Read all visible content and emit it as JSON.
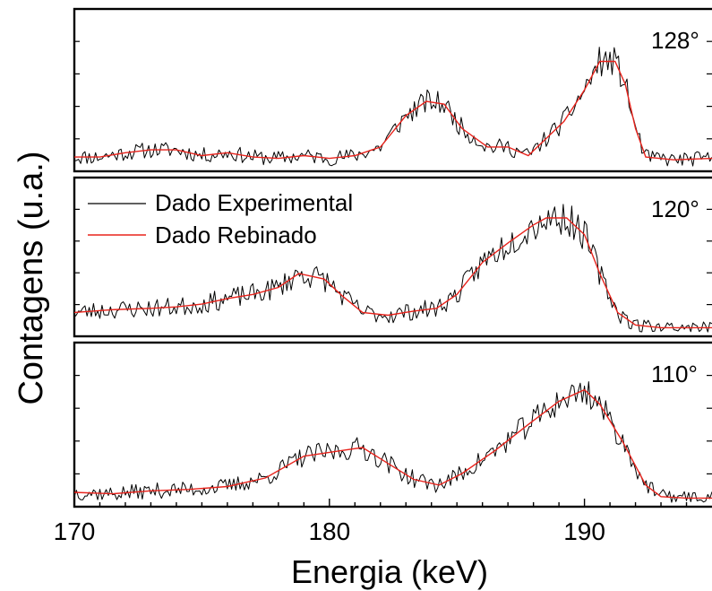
{
  "chart_data": {
    "type": "line",
    "ylabel": "Contagens (u.a.)",
    "xlabel": "Energia (keV)",
    "xlim": [
      170,
      195
    ],
    "xticks": [
      170,
      180,
      190
    ],
    "xtick_labels": [
      "170",
      "180",
      "190"
    ],
    "grid": false,
    "legend": {
      "placement": "top-left of middle panel",
      "entries": [
        {
          "label": "Dado Experimental",
          "color": "#000000"
        },
        {
          "label": "Dado Rebinado",
          "color": "#e8231c"
        }
      ]
    },
    "panels": [
      {
        "angle_label": "128°",
        "noise": 0.09,
        "seed": 11,
        "rebinned": [
          [
            170.0,
            0.05
          ],
          [
            171.0,
            0.05
          ],
          [
            172.0,
            0.08
          ],
          [
            173.0,
            0.1
          ],
          [
            174.0,
            0.1
          ],
          [
            175.0,
            0.06
          ],
          [
            176.0,
            0.08
          ],
          [
            177.0,
            0.05
          ],
          [
            178.0,
            0.04
          ],
          [
            179.0,
            0.06
          ],
          [
            180.0,
            0.04
          ],
          [
            181.0,
            0.06
          ],
          [
            182.0,
            0.12
          ],
          [
            183.0,
            0.34
          ],
          [
            183.8,
            0.44
          ],
          [
            184.5,
            0.42
          ],
          [
            185.2,
            0.25
          ],
          [
            186.2,
            0.12
          ],
          [
            187.0,
            0.12
          ],
          [
            187.8,
            0.06
          ],
          [
            188.5,
            0.18
          ],
          [
            189.2,
            0.3
          ],
          [
            190.0,
            0.52
          ],
          [
            190.6,
            0.72
          ],
          [
            191.2,
            0.72
          ],
          [
            191.6,
            0.56
          ],
          [
            192.0,
            0.25
          ],
          [
            192.4,
            0.05
          ],
          [
            193.5,
            0.03
          ],
          [
            195.0,
            0.04
          ]
        ]
      },
      {
        "angle_label": "120°",
        "noise": 0.1,
        "seed": 23,
        "rebinned": [
          [
            170.0,
            0.12
          ],
          [
            171.5,
            0.14
          ],
          [
            173.0,
            0.15
          ],
          [
            174.0,
            0.16
          ],
          [
            175.0,
            0.18
          ],
          [
            176.0,
            0.22
          ],
          [
            177.0,
            0.25
          ],
          [
            178.0,
            0.3
          ],
          [
            178.8,
            0.4
          ],
          [
            179.8,
            0.36
          ],
          [
            180.5,
            0.24
          ],
          [
            181.3,
            0.12
          ],
          [
            182.3,
            0.1
          ],
          [
            183.3,
            0.13
          ],
          [
            184.2,
            0.15
          ],
          [
            185.0,
            0.25
          ],
          [
            186.0,
            0.48
          ],
          [
            187.0,
            0.62
          ],
          [
            188.0,
            0.75
          ],
          [
            188.5,
            0.8
          ],
          [
            189.3,
            0.8
          ],
          [
            190.0,
            0.68
          ],
          [
            190.6,
            0.4
          ],
          [
            191.3,
            0.12
          ],
          [
            192.0,
            0.03
          ],
          [
            193.0,
            0.01
          ],
          [
            195.0,
            0.01
          ]
        ]
      },
      {
        "angle_label": "110°",
        "noise": 0.09,
        "seed": 37,
        "rebinned": [
          [
            170.0,
            0.05
          ],
          [
            171.5,
            0.04
          ],
          [
            173.0,
            0.06
          ],
          [
            174.5,
            0.07
          ],
          [
            176.0,
            0.09
          ],
          [
            177.5,
            0.15
          ],
          [
            179.0,
            0.3
          ],
          [
            180.5,
            0.34
          ],
          [
            181.3,
            0.36
          ],
          [
            182.3,
            0.25
          ],
          [
            183.3,
            0.14
          ],
          [
            184.3,
            0.1
          ],
          [
            185.2,
            0.18
          ],
          [
            186.5,
            0.34
          ],
          [
            187.8,
            0.52
          ],
          [
            189.0,
            0.68
          ],
          [
            190.0,
            0.76
          ],
          [
            190.6,
            0.66
          ],
          [
            191.5,
            0.4
          ],
          [
            192.4,
            0.1
          ],
          [
            193.0,
            0.02
          ],
          [
            194.0,
            0.01
          ],
          [
            195.0,
            0.01
          ]
        ]
      }
    ]
  }
}
